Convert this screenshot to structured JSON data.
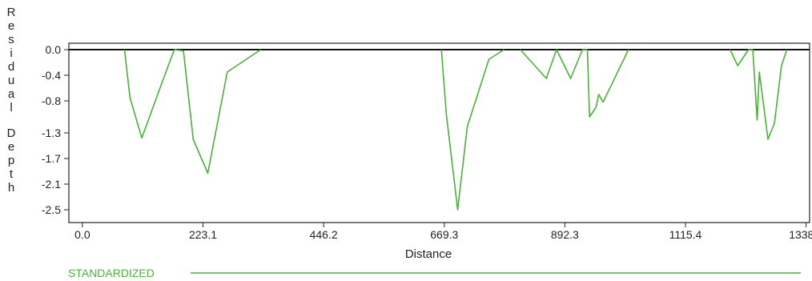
{
  "chart_data": {
    "type": "line",
    "xlabel": "Distance",
    "ylabel": "Residual Depth",
    "xlim": [
      -25,
      1345
    ],
    "ylim": [
      -2.7,
      0.1
    ],
    "x_ticks": [
      "0.0",
      "223.1",
      "446.2",
      "669.3",
      "892.3",
      "1115.4",
      "1338.5"
    ],
    "y_ticks": [
      "0.0",
      "-0.4",
      "-0.8",
      "-1.3",
      "-1.7",
      "-2.1",
      "-2.5"
    ],
    "baseline": 0.0,
    "grid": false,
    "series": [
      {
        "name": "STANDARDIZED",
        "color": "#4caf3a",
        "segments": [
          [
            [
              78,
              0
            ],
            [
              88,
              -0.75
            ],
            [
              110,
              -1.38
            ],
            [
              150,
              -0.45
            ],
            [
              170,
              0
            ],
            [
              187,
              -0.02
            ],
            [
              205,
              -1.4
            ],
            [
              232,
              -1.93
            ],
            [
              268,
              -0.35
            ],
            [
              330,
              0
            ]
          ],
          [
            [
              664,
              0
            ],
            [
              673,
              -1.0
            ],
            [
              694,
              -2.5
            ],
            [
              712,
              -1.2
            ],
            [
              752,
              -0.15
            ],
            [
              780,
              0
            ]
          ],
          [
            [
              810,
              0
            ],
            [
              858,
              -0.45
            ],
            [
              877,
              0
            ],
            [
              903,
              -0.45
            ],
            [
              925,
              0
            ],
            [
              934,
              0
            ],
            [
              938,
              -1.05
            ],
            [
              950,
              -0.9
            ],
            [
              955,
              -0.7
            ],
            [
              963,
              -0.82
            ],
            [
              1010,
              0
            ]
          ],
          [
            [
              1198,
              0
            ],
            [
              1212,
              -0.25
            ],
            [
              1232,
              0
            ],
            [
              1240,
              0
            ],
            [
              1248,
              -1.1
            ],
            [
              1252,
              -0.35
            ],
            [
              1268,
              -1.4
            ],
            [
              1280,
              -1.15
            ],
            [
              1293,
              -0.25
            ],
            [
              1303,
              0
            ]
          ]
        ]
      }
    ]
  }
}
